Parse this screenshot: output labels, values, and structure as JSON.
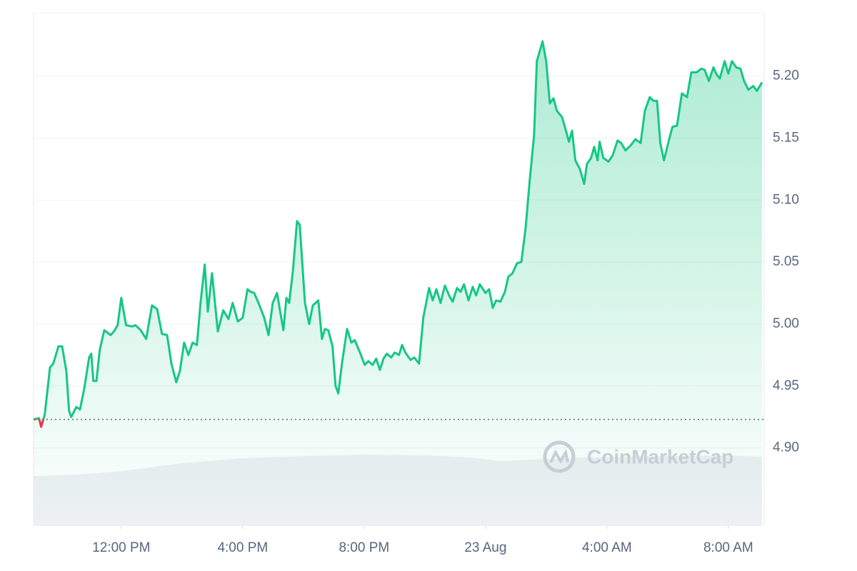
{
  "chart_data": {
    "type": "area-line",
    "watermark": "CoinMarketCap",
    "line_color": "#16c784",
    "down_color": "#ea3943",
    "baseline": 4.923,
    "grid": true,
    "xlim": [
      9.11,
      33.18
    ],
    "ylim": [
      4.837,
      5.251
    ],
    "xticks": [
      {
        "value": 12,
        "label": "12:00 PM"
      },
      {
        "value": 16,
        "label": "4:00 PM"
      },
      {
        "value": 20,
        "label": "8:00 PM"
      },
      {
        "value": 24,
        "label": "23 Aug"
      },
      {
        "value": 28,
        "label": "4:00 AM"
      },
      {
        "value": 32,
        "label": "8:00 AM"
      }
    ],
    "yticks": [
      {
        "value": 4.9,
        "label": "4.90"
      },
      {
        "value": 4.95,
        "label": "4.95"
      },
      {
        "value": 5.0,
        "label": "5.00"
      },
      {
        "value": 5.05,
        "label": "5.05"
      },
      {
        "value": 5.1,
        "label": "5.10"
      },
      {
        "value": 5.15,
        "label": "5.15"
      },
      {
        "value": 5.2,
        "label": "5.20"
      }
    ],
    "x": [
      9.11,
      9.29,
      9.36,
      9.48,
      9.65,
      9.76,
      9.93,
      10.05,
      10.19,
      10.28,
      10.35,
      10.52,
      10.64,
      10.78,
      10.94,
      11.01,
      11.08,
      11.18,
      11.29,
      11.44,
      11.65,
      11.76,
      11.88,
      12.0,
      12.16,
      12.35,
      12.47,
      12.64,
      12.82,
      13.01,
      13.18,
      13.34,
      13.51,
      13.65,
      13.81,
      13.93,
      14.07,
      14.21,
      14.35,
      14.49,
      14.61,
      14.75,
      14.85,
      14.99,
      15.18,
      15.36,
      15.53,
      15.67,
      15.84,
      16.0,
      16.16,
      16.26,
      16.38,
      16.52,
      16.71,
      16.85,
      16.99,
      17.13,
      17.34,
      17.44,
      17.53,
      17.65,
      17.79,
      17.88,
      18.05,
      18.19,
      18.31,
      18.49,
      18.61,
      18.71,
      18.82,
      18.96,
      19.06,
      19.15,
      19.27,
      19.44,
      19.58,
      19.69,
      19.88,
      20.02,
      20.14,
      20.28,
      20.4,
      20.52,
      20.64,
      20.75,
      20.89,
      21.01,
      21.15,
      21.25,
      21.36,
      21.53,
      21.65,
      21.81,
      21.95,
      22.14,
      22.26,
      22.38,
      22.52,
      22.66,
      22.82,
      22.92,
      23.06,
      23.18,
      23.29,
      23.44,
      23.58,
      23.69,
      23.81,
      24.0,
      24.12,
      24.24,
      24.35,
      24.49,
      24.64,
      24.75,
      24.89,
      25.04,
      25.18,
      25.32,
      25.46,
      25.6,
      25.69,
      25.88,
      26.0,
      26.12,
      26.24,
      26.35,
      26.52,
      26.64,
      26.75,
      26.85,
      26.96,
      27.11,
      27.25,
      27.34,
      27.48,
      27.58,
      27.69,
      27.76,
      27.88,
      28.05,
      28.19,
      28.35,
      28.47,
      28.61,
      28.78,
      28.94,
      29.11,
      29.25,
      29.41,
      29.53,
      29.65,
      29.76,
      29.88,
      30.05,
      30.16,
      30.31,
      30.47,
      30.64,
      30.78,
      30.95,
      31.11,
      31.22,
      31.36,
      31.51,
      31.6,
      31.72,
      31.88,
      32.0,
      32.12,
      32.26,
      32.4,
      32.52,
      32.66,
      32.82,
      32.94,
      33.11
    ],
    "values": [
      4.923,
      4.924,
      4.917,
      4.927,
      4.965,
      4.968,
      4.982,
      4.982,
      4.962,
      4.93,
      4.925,
      4.933,
      4.931,
      4.948,
      4.973,
      4.976,
      4.954,
      4.954,
      4.979,
      4.995,
      4.991,
      4.994,
      4.999,
      5.021,
      4.999,
      4.998,
      4.999,
      4.995,
      4.988,
      5.015,
      5.012,
      4.992,
      4.991,
      4.968,
      4.953,
      4.962,
      4.985,
      4.975,
      4.985,
      4.983,
      5.017,
      5.048,
      5.01,
      5.041,
      4.994,
      5.011,
      5.004,
      5.017,
      5.002,
      5.005,
      5.028,
      5.026,
      5.025,
      5.017,
      5.005,
      4.991,
      5.017,
      5.025,
      4.995,
      5.021,
      5.017,
      5.042,
      5.083,
      5.08,
      5.017,
      5.0,
      5.015,
      5.019,
      4.988,
      4.996,
      4.995,
      4.982,
      4.95,
      4.944,
      4.968,
      4.996,
      4.985,
      4.987,
      4.976,
      4.967,
      4.97,
      4.967,
      4.972,
      4.963,
      4.972,
      4.976,
      4.973,
      4.977,
      4.975,
      4.983,
      4.977,
      4.971,
      4.973,
      4.968,
      5.005,
      5.029,
      5.019,
      5.028,
      5.017,
      5.031,
      5.022,
      5.018,
      5.029,
      5.026,
      5.032,
      5.019,
      5.03,
      5.023,
      5.032,
      5.025,
      5.028,
      5.013,
      5.019,
      5.018,
      5.026,
      5.038,
      5.041,
      5.049,
      5.05,
      5.077,
      5.117,
      5.152,
      5.212,
      5.228,
      5.212,
      5.178,
      5.182,
      5.172,
      5.167,
      5.157,
      5.147,
      5.156,
      5.132,
      5.125,
      5.113,
      5.129,
      5.134,
      5.143,
      5.132,
      5.147,
      5.134,
      5.131,
      5.136,
      5.148,
      5.146,
      5.14,
      5.144,
      5.149,
      5.146,
      5.172,
      5.183,
      5.18,
      5.18,
      5.146,
      5.132,
      5.149,
      5.159,
      5.16,
      5.186,
      5.183,
      5.203,
      5.203,
      5.206,
      5.205,
      5.196,
      5.207,
      5.202,
      5.198,
      5.212,
      5.202,
      5.212,
      5.207,
      5.206,
      5.196,
      5.189,
      5.192,
      5.188,
      5.195
    ],
    "volume": {
      "color": "#eef0f3",
      "ylim": [
        0,
        100
      ],
      "x": [
        9.11,
        10.5,
        12,
        14,
        16,
        18,
        20,
        22,
        23.5,
        24.5,
        26,
        28,
        30,
        32,
        33.11
      ],
      "values": [
        70,
        72,
        77,
        88,
        95,
        98,
        100,
        99,
        96,
        91,
        94,
        97,
        98,
        99,
        97
      ]
    }
  }
}
